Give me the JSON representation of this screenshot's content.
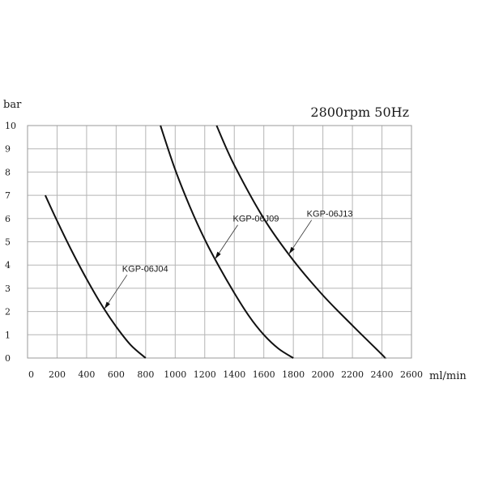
{
  "chart_data": {
    "type": "line",
    "title": "2800rpm 50Hz",
    "xlabel": "ml/min",
    "ylabel": "bar",
    "xlim": [
      0,
      2600
    ],
    "ylim": [
      0,
      10
    ],
    "x_ticks": [
      0,
      200,
      400,
      600,
      800,
      1000,
      1200,
      1400,
      1600,
      1800,
      2000,
      2200,
      2400,
      2600
    ],
    "y_ticks": [
      0,
      1,
      2,
      3,
      4,
      5,
      6,
      7,
      8,
      9,
      10
    ],
    "grid": true,
    "series": [
      {
        "name": "KGP-06J04",
        "x": [
          120,
          200,
          300,
          400,
          500,
          600,
          700,
          800
        ],
        "y": [
          7.0,
          5.9,
          4.6,
          3.4,
          2.3,
          1.35,
          0.55,
          0
        ],
        "label_at_x": 520
      },
      {
        "name": "KGP-06J09",
        "x": [
          900,
          1000,
          1100,
          1200,
          1300,
          1400,
          1500,
          1600,
          1700,
          1800
        ],
        "y": [
          10.0,
          8.1,
          6.5,
          5.1,
          3.9,
          2.8,
          1.8,
          1.0,
          0.4,
          0
        ],
        "label_at_x": 1270
      },
      {
        "name": "KGP-06J13",
        "x": [
          1280,
          1400,
          1600,
          1800,
          2000,
          2200,
          2400,
          2420
        ],
        "y": [
          10.0,
          8.3,
          6.0,
          4.2,
          2.7,
          1.4,
          0.15,
          0
        ],
        "label_at_x": 1770
      }
    ]
  }
}
